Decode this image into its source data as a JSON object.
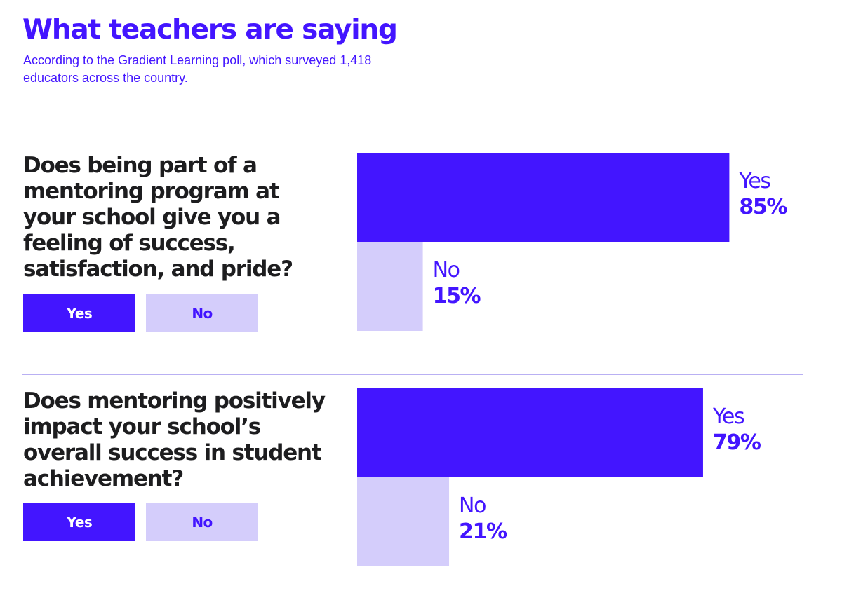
{
  "header": {
    "title": "What teachers are saying",
    "subtitle": "According to the Gradient Learning poll, which surveyed 1,418 educators across the country."
  },
  "colors": {
    "accent": "#4315ff",
    "accent_light": "#d4cdfb",
    "divider": "#b9b0f3",
    "question_text": "#1d1d1f"
  },
  "questions": [
    {
      "question": "Does being part of a mentoring program at your school give you a feeling of success, satisfaction, and pride?",
      "yes_button": "Yes",
      "no_button": "No"
    },
    {
      "question": "Does mentoring positively impact your school’s overall success in student achievement?",
      "yes_button": "Yes",
      "no_button": "No"
    }
  ],
  "chart_data": [
    {
      "type": "bar",
      "orientation": "horizontal",
      "categories": [
        "Yes",
        "No"
      ],
      "values": [
        85,
        15
      ],
      "value_labels": [
        "85%",
        "15%"
      ],
      "xlim": [
        0,
        100
      ],
      "grid": false
    },
    {
      "type": "bar",
      "orientation": "horizontal",
      "categories": [
        "Yes",
        "No"
      ],
      "values": [
        79,
        21
      ],
      "value_labels": [
        "79%",
        "21%"
      ],
      "xlim": [
        0,
        100
      ],
      "grid": false
    }
  ]
}
